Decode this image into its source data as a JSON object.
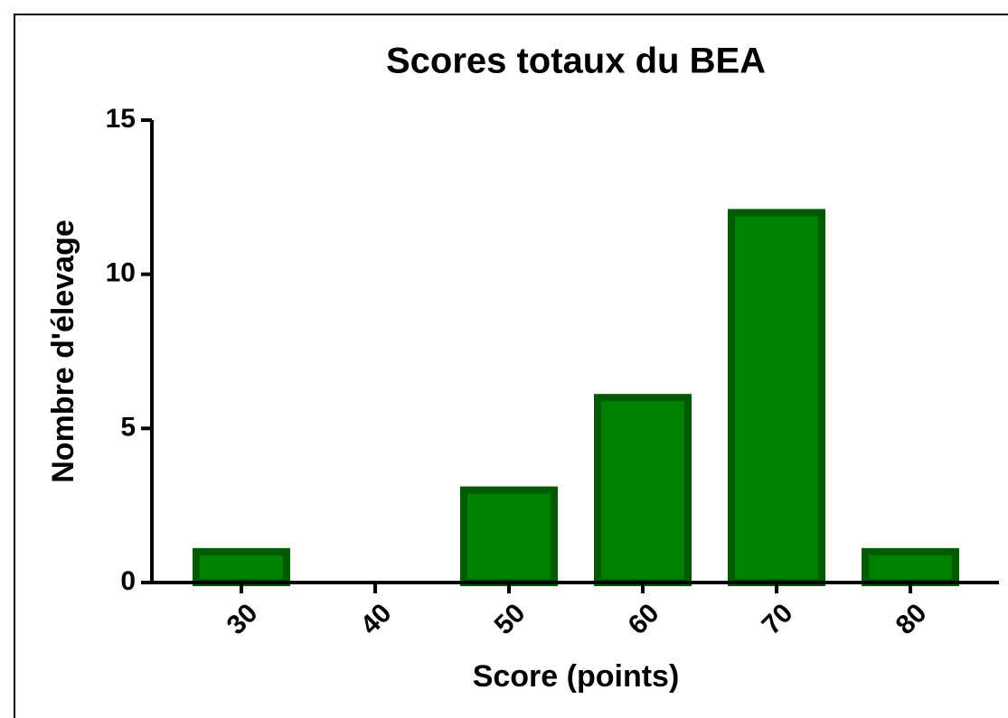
{
  "chart_data": {
    "type": "bar",
    "title": "Scores totaux du BEA",
    "x_label": "Score (points)",
    "y_label": "Nombre d'élevage",
    "categories": [
      "30",
      "40",
      "50",
      "60",
      "70",
      "80"
    ],
    "values": [
      1,
      0,
      3,
      6,
      12,
      1
    ],
    "color": "#008000",
    "edge_color": "#005a00",
    "ylim": [
      0,
      15
    ],
    "yticks": [
      0,
      5,
      10,
      15
    ]
  }
}
